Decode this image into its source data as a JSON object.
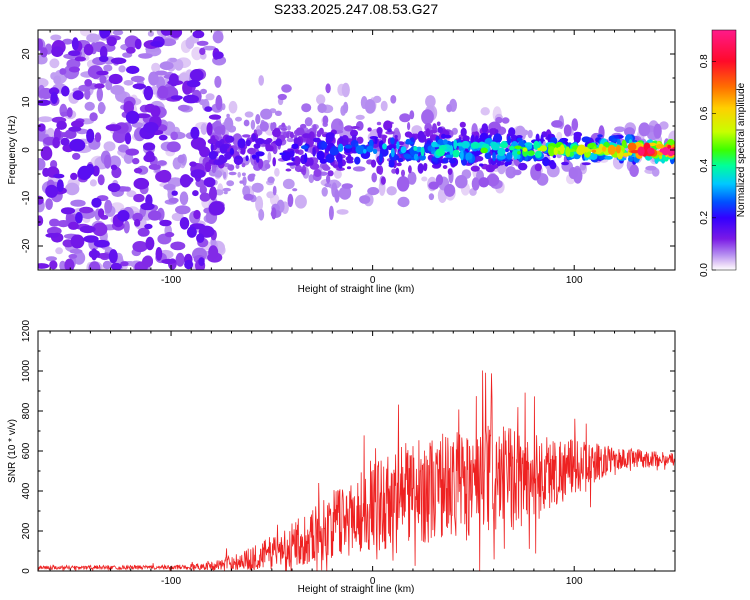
{
  "figure": {
    "title": "S233.2025.247.08.53.G27"
  },
  "chart_data": [
    {
      "type": "heatmap",
      "title": "S233.2025.247.08.53.G27",
      "xlabel": "Height of straight line (km)",
      "ylabel": "Frequency (Hz)",
      "xlim": [
        -166,
        150
      ],
      "ylim": [
        -25,
        25
      ],
      "xticks": [
        -100,
        0,
        100
      ],
      "yticks": [
        -20,
        -10,
        0,
        10,
        20
      ],
      "colorbar": {
        "label": "Normalized spectral amplitude",
        "range": [
          0.0,
          0.92
        ],
        "ticks": [
          0.0,
          0.2,
          0.4,
          0.6,
          0.8
        ],
        "colors": [
          "#ffffff",
          "#ead8f7",
          "#b48cf0",
          "#7a1ae6",
          "#3300ff",
          "#0050ff",
          "#00c8ff",
          "#00ff9a",
          "#3cff00",
          "#c8ff00",
          "#ffd000",
          "#ff7000",
          "#ff0a2a",
          "#ff1a8a"
        ],
        "color_stops": [
          0.0,
          0.02,
          0.06,
          0.12,
          0.2,
          0.26,
          0.33,
          0.4,
          0.46,
          0.53,
          0.62,
          0.7,
          0.8,
          0.92
        ]
      },
      "description_of_field": {
        "noise_region_km": [
          -166,
          -80
        ],
        "noise_amplitude": 0.12,
        "signal_centre_frequency_hz": 0,
        "signal_amplitude_profile": [
          {
            "x": -80,
            "amp": 0.15
          },
          {
            "x": -40,
            "amp": 0.2
          },
          {
            "x": 0,
            "amp": 0.3
          },
          {
            "x": 50,
            "amp": 0.38
          },
          {
            "x": 100,
            "amp": 0.5
          },
          {
            "x": 145,
            "amp": 0.9
          }
        ]
      }
    },
    {
      "type": "line",
      "title": "",
      "xlabel": "Height of straight line (km)",
      "ylabel": "SNR (10 * v/v)",
      "xlim": [
        -166,
        150
      ],
      "ylim": [
        0,
        1200
      ],
      "xticks": [
        -100,
        0,
        100
      ],
      "yticks": [
        0,
        200,
        400,
        600,
        800,
        1000,
        1200
      ],
      "series": [
        {
          "name": "SNR",
          "color": "#ee2222",
          "envelope_x": [
            -166,
            -100,
            -80,
            -60,
            -40,
            -20,
            0,
            20,
            40,
            60,
            80,
            100,
            120,
            150
          ],
          "envelope_mean": [
            18,
            18,
            25,
            60,
            130,
            230,
            330,
            390,
            430,
            450,
            470,
            520,
            560,
            560
          ],
          "envelope_spread": [
            10,
            10,
            20,
            60,
            110,
            170,
            230,
            260,
            270,
            280,
            230,
            140,
            60,
            30
          ]
        }
      ]
    }
  ]
}
